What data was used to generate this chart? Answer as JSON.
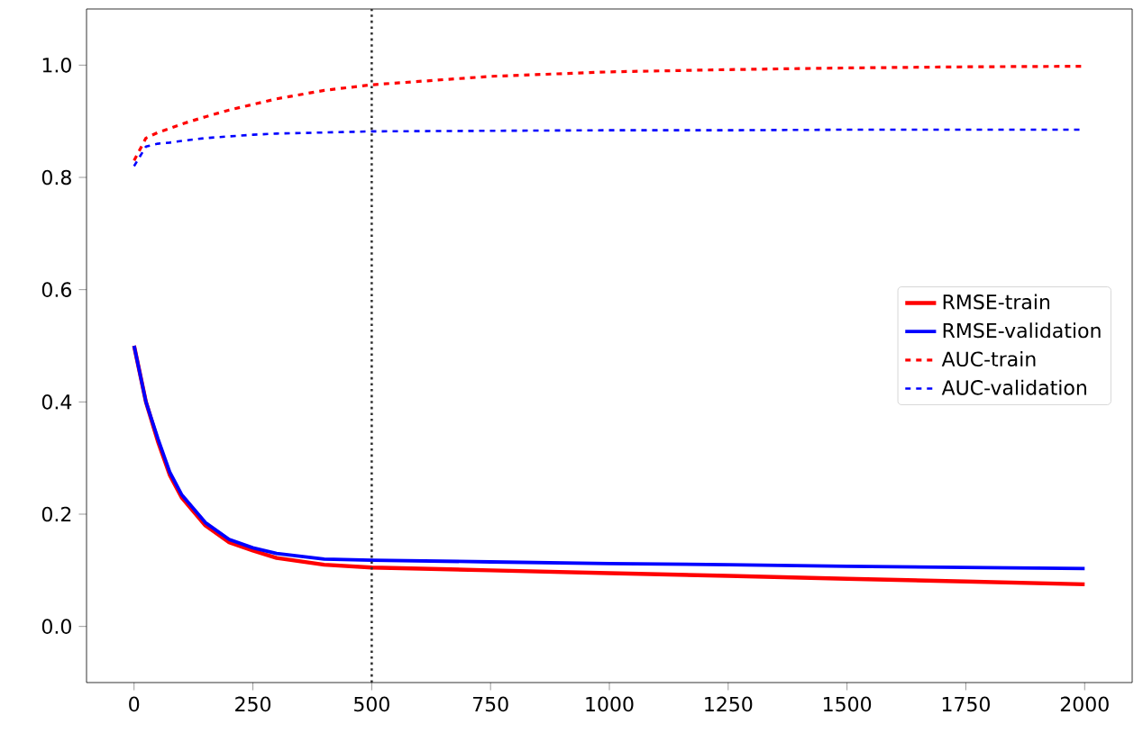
{
  "chart_data": {
    "type": "line",
    "xlim": [
      -100,
      2100
    ],
    "ylim": [
      -0.1,
      1.1
    ],
    "xticks": [
      0,
      250,
      500,
      750,
      1000,
      1250,
      1500,
      1750,
      2000
    ],
    "yticks": [
      {
        "value": 0,
        "label": "0.0"
      },
      {
        "value": 0.2,
        "label": "0.2"
      },
      {
        "value": 0.4,
        "label": "0.4"
      },
      {
        "value": 0.6,
        "label": "0.6"
      },
      {
        "value": 0.8,
        "label": "0.8"
      },
      {
        "value": 1.0,
        "label": "1.0"
      }
    ],
    "x": [
      0,
      25,
      50,
      75,
      100,
      150,
      200,
      250,
      300,
      400,
      500,
      750,
      1000,
      1250,
      1500,
      1750,
      2000
    ],
    "series": [
      {
        "name": "RMSE-train",
        "color": "#ff0000",
        "line_style": "solid",
        "values": [
          0.5,
          0.4,
          0.33,
          0.27,
          0.23,
          0.18,
          0.15,
          0.135,
          0.122,
          0.11,
          0.105,
          0.1,
          0.095,
          0.09,
          0.085,
          0.08,
          0.075
        ]
      },
      {
        "name": "RMSE-validation",
        "color": "#0000ff",
        "line_style": "solid",
        "values": [
          0.5,
          0.4,
          0.335,
          0.275,
          0.235,
          0.185,
          0.155,
          0.14,
          0.13,
          0.12,
          0.118,
          0.115,
          0.112,
          0.11,
          0.107,
          0.105,
          0.103
        ]
      },
      {
        "name": "AUC-train",
        "color": "#ff0000",
        "line_style": "dashed",
        "values": [
          0.83,
          0.87,
          0.88,
          0.887,
          0.895,
          0.908,
          0.92,
          0.93,
          0.94,
          0.955,
          0.965,
          0.98,
          0.988,
          0.992,
          0.995,
          0.997,
          0.998
        ]
      },
      {
        "name": "AUC-validation",
        "color": "#0000ff",
        "line_style": "dashed",
        "values": [
          0.82,
          0.855,
          0.86,
          0.862,
          0.865,
          0.87,
          0.873,
          0.876,
          0.878,
          0.88,
          0.882,
          0.883,
          0.884,
          0.884,
          0.885,
          0.885,
          0.885
        ]
      }
    ],
    "ref_lines": [
      {
        "axis": "x",
        "value": 500,
        "color": "#333333",
        "line_style": "dotted"
      }
    ],
    "legend": "right",
    "grid": false
  }
}
